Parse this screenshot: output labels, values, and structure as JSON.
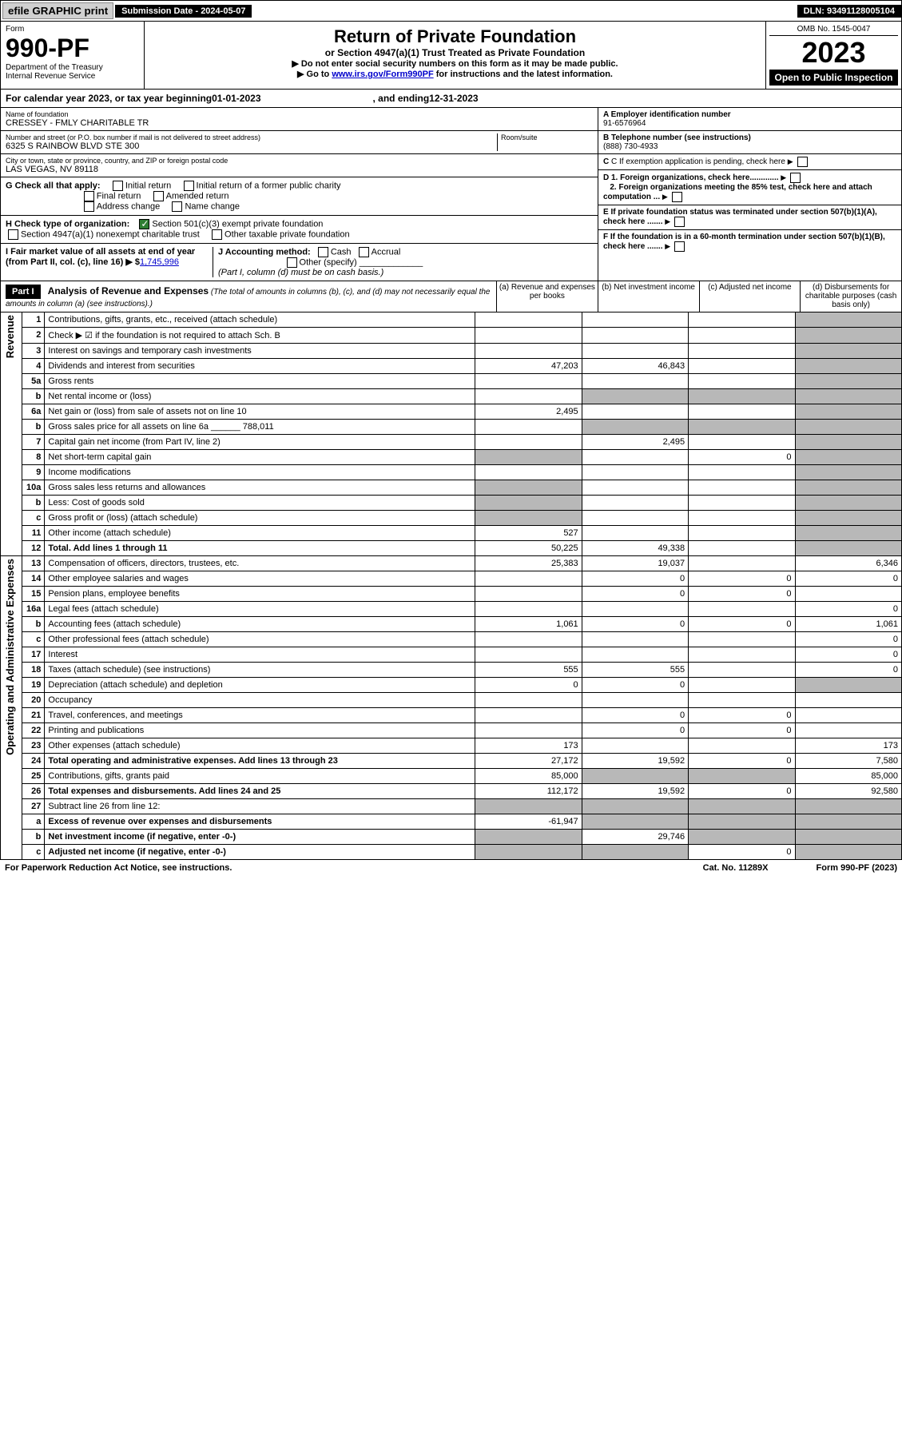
{
  "topbar": {
    "efile": "efile GRAPHIC print",
    "subdate_lbl": "Submission Date - ",
    "subdate": "2024-05-07",
    "dln_lbl": "DLN: ",
    "dln": "93491128005104"
  },
  "header": {
    "form_word": "Form",
    "form_no": "990-PF",
    "dept": "Department of the Treasury",
    "irs": "Internal Revenue Service",
    "title": "Return of Private Foundation",
    "subtitle": "or Section 4947(a)(1) Trust Treated as Private Foundation",
    "note1": "▶ Do not enter social security numbers on this form as it may be made public.",
    "note2a": "▶ Go to ",
    "note2_link": "www.irs.gov/Form990PF",
    "note2b": " for instructions and the latest information.",
    "omb": "OMB No. 1545-0047",
    "year": "2023",
    "open": "Open to Public Inspection"
  },
  "calyear": {
    "a": "For calendar year 2023, or tax year beginning ",
    "b": "01-01-2023",
    "c": ", and ending ",
    "d": "12-31-2023"
  },
  "info": {
    "name_lbl": "Name of foundation",
    "name": "CRESSEY - FMLY CHARITABLE TR",
    "addr_lbl": "Number and street (or P.O. box number if mail is not delivered to street address)",
    "addr": "6325 S RAINBOW BLVD STE 300",
    "room_lbl": "Room/suite",
    "city_lbl": "City or town, state or province, country, and ZIP or foreign postal code",
    "city": "LAS VEGAS, NV  89118",
    "ein_lbl": "A Employer identification number",
    "ein": "91-6576964",
    "tel_lbl": "B Telephone number (see instructions)",
    "tel": "(888) 730-4933",
    "c_lbl": "C If exemption application is pending, check here",
    "d1": "D 1. Foreign organizations, check here.............",
    "d2": "2. Foreign organizations meeting the 85% test, check here and attach computation ...",
    "e": "E  If private foundation status was terminated under section 507(b)(1)(A), check here .......",
    "f": "F  If the foundation is in a 60-month termination under section 507(b)(1)(B), check here ......."
  },
  "checks": {
    "g_lbl": "G Check all that apply:",
    "g1": "Initial return",
    "g2": "Initial return of a former public charity",
    "g3": "Final return",
    "g4": "Amended return",
    "g5": "Address change",
    "g6": "Name change",
    "h_lbl": "H Check type of organization:",
    "h1": "Section 501(c)(3) exempt private foundation",
    "h2": "Section 4947(a)(1) nonexempt charitable trust",
    "h3": "Other taxable private foundation",
    "i_lbl": "I Fair market value of all assets at end of year (from Part II, col. (c), line 16) ▶ $",
    "i_val": "1,745,996",
    "j_lbl": "J Accounting method:",
    "j1": "Cash",
    "j2": "Accrual",
    "j3": "Other (specify)",
    "j_note": "(Part I, column (d) must be on cash basis.)"
  },
  "part1": {
    "hdr": "Part I",
    "title": "Analysis of Revenue and Expenses",
    "title_note": " (The total of amounts in columns (b), (c), and (d) may not necessarily equal the amounts in column (a) (see instructions).)",
    "colA": "(a)  Revenue and expenses per books",
    "colB": "(b)  Net investment income",
    "colC": "(c)  Adjusted net income",
    "colD": "(d)  Disbursements for charitable purposes (cash basis only)"
  },
  "side": {
    "rev": "Revenue",
    "exp": "Operating and Administrative Expenses"
  },
  "rows": [
    {
      "n": "1",
      "d": "Contributions, gifts, grants, etc., received (attach schedule)"
    },
    {
      "n": "2",
      "d": "Check ▶ ☑ if the foundation is not required to attach Sch. B"
    },
    {
      "n": "3",
      "d": "Interest on savings and temporary cash investments"
    },
    {
      "n": "4",
      "d": "Dividends and interest from securities",
      "a": "47,203",
      "b": "46,843"
    },
    {
      "n": "5a",
      "d": "Gross rents"
    },
    {
      "n": "b",
      "d": "Net rental income or (loss)"
    },
    {
      "n": "6a",
      "d": "Net gain or (loss) from sale of assets not on line 10",
      "a": "2,495"
    },
    {
      "n": "b",
      "d": "Gross sales price for all assets on line 6a ______ 788,011"
    },
    {
      "n": "7",
      "d": "Capital gain net income (from Part IV, line 2)",
      "b": "2,495"
    },
    {
      "n": "8",
      "d": "Net short-term capital gain",
      "c": "0"
    },
    {
      "n": "9",
      "d": "Income modifications"
    },
    {
      "n": "10a",
      "d": "Gross sales less returns and allowances"
    },
    {
      "n": "b",
      "d": "Less: Cost of goods sold"
    },
    {
      "n": "c",
      "d": "Gross profit or (loss) (attach schedule)"
    },
    {
      "n": "11",
      "d": "Other income (attach schedule)",
      "a": "527"
    },
    {
      "n": "12",
      "d": "Total. Add lines 1 through 11",
      "a": "50,225",
      "b": "49,338",
      "bold": true
    },
    {
      "n": "13",
      "d": "Compensation of officers, directors, trustees, etc.",
      "a": "25,383",
      "b": "19,037",
      "dd": "6,346"
    },
    {
      "n": "14",
      "d": "Other employee salaries and wages",
      "b": "0",
      "c": "0",
      "dd": "0"
    },
    {
      "n": "15",
      "d": "Pension plans, employee benefits",
      "b": "0",
      "c": "0"
    },
    {
      "n": "16a",
      "d": "Legal fees (attach schedule)",
      "dd": "0"
    },
    {
      "n": "b",
      "d": "Accounting fees (attach schedule)",
      "a": "1,061",
      "b": "0",
      "c": "0",
      "dd": "1,061"
    },
    {
      "n": "c",
      "d": "Other professional fees (attach schedule)",
      "dd": "0"
    },
    {
      "n": "17",
      "d": "Interest",
      "dd": "0"
    },
    {
      "n": "18",
      "d": "Taxes (attach schedule) (see instructions)",
      "a": "555",
      "b": "555",
      "dd": "0"
    },
    {
      "n": "19",
      "d": "Depreciation (attach schedule) and depletion",
      "a": "0",
      "b": "0"
    },
    {
      "n": "20",
      "d": "Occupancy"
    },
    {
      "n": "21",
      "d": "Travel, conferences, and meetings",
      "b": "0",
      "c": "0"
    },
    {
      "n": "22",
      "d": "Printing and publications",
      "b": "0",
      "c": "0"
    },
    {
      "n": "23",
      "d": "Other expenses (attach schedule)",
      "a": "173",
      "dd": "173"
    },
    {
      "n": "24",
      "d": "Total operating and administrative expenses. Add lines 13 through 23",
      "a": "27,172",
      "b": "19,592",
      "c": "0",
      "dd": "7,580",
      "bold": true
    },
    {
      "n": "25",
      "d": "Contributions, gifts, grants paid",
      "a": "85,000",
      "dd": "85,000"
    },
    {
      "n": "26",
      "d": "Total expenses and disbursements. Add lines 24 and 25",
      "a": "112,172",
      "b": "19,592",
      "c": "0",
      "dd": "92,580",
      "bold": true
    },
    {
      "n": "27",
      "d": "Subtract line 26 from line 12:"
    },
    {
      "n": "a",
      "d": "Excess of revenue over expenses and disbursements",
      "a": "-61,947",
      "bold": true
    },
    {
      "n": "b",
      "d": "Net investment income (if negative, enter -0-)",
      "b": "29,746",
      "bold": true
    },
    {
      "n": "c",
      "d": "Adjusted net income (if negative, enter -0-)",
      "c": "0",
      "bold": true
    }
  ],
  "footer": {
    "l": "For Paperwork Reduction Act Notice, see instructions.",
    "m": "Cat. No. 11289X",
    "r": "Form 990-PF (2023)"
  }
}
